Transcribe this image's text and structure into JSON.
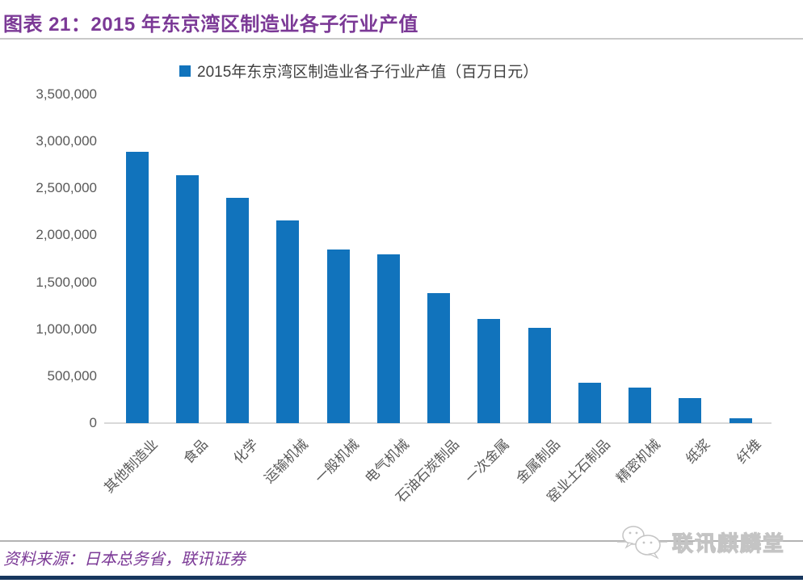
{
  "header": {
    "title": "图表 21：2015 年东京湾区制造业各子行业产值"
  },
  "legend": {
    "label": "2015年东京湾区制造业各子行业产值（百万日元）"
  },
  "chart_data": {
    "type": "bar",
    "title": "2015年东京湾区制造业各子行业产值（百万日元）",
    "categories": [
      "其他制造业",
      "食品",
      "化学",
      "运输机械",
      "一般机械",
      "电气机械",
      "石油石炭制品",
      "一次金属",
      "金属制品",
      "窑业土石制品",
      "精密机械",
      "纸浆",
      "纤维"
    ],
    "values": [
      2890000,
      2640000,
      2400000,
      2160000,
      1850000,
      1800000,
      1385000,
      1110000,
      1015000,
      430000,
      380000,
      270000,
      55000
    ],
    "xlabel": "",
    "ylabel": "",
    "ylim": [
      0,
      3500000
    ],
    "ytick_labels": [
      "3,500,000",
      "3,000,000",
      "2,500,000",
      "2,000,000",
      "1,500,000",
      "1,000,000",
      "500,000",
      "0"
    ],
    "ytick_values": [
      3500000,
      3000000,
      2500000,
      2000000,
      1500000,
      1000000,
      500000,
      0
    ],
    "bar_color": "#1173BC",
    "grid": false,
    "legend_position": "top"
  },
  "footer": {
    "source": "资料来源：日本总务省，联讯证券",
    "logo_text": "联讯麒麟堂"
  },
  "colors": {
    "title_text": "#7B3996",
    "bar": "#1173BC",
    "legend_text": "#404040",
    "axis_text": "#595959",
    "axis_line": "#D9D9D9",
    "rule_gray": "#B3B3B3",
    "bottom_bar": "#17375E"
  },
  "icons": {
    "logo_icon": "wechat-bubbles-icon"
  }
}
